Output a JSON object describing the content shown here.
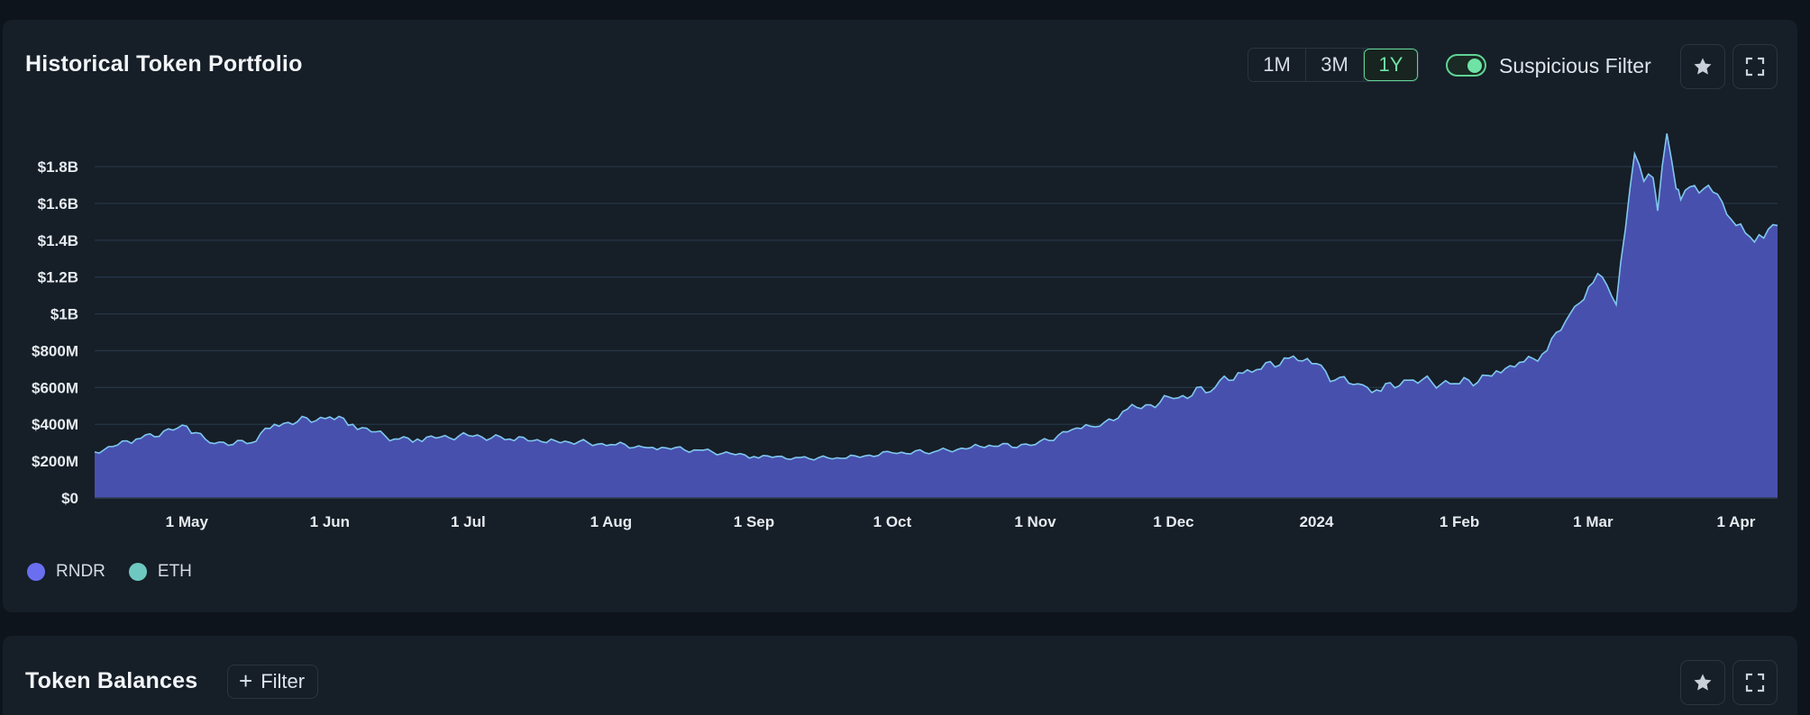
{
  "portfolio_card": {
    "title": "Historical Token Portfolio",
    "ranges": [
      "1M",
      "3M",
      "1Y"
    ],
    "active_range": "1Y",
    "suspicious_filter": {
      "label": "Suspicious Filter",
      "enabled": true
    },
    "star_icon": "star-icon",
    "expand_icon": "fullscreen-icon"
  },
  "balances_card": {
    "title": "Token Balances",
    "filter_label": "Filter",
    "filter_icon": "plus-icon",
    "star_icon": "star-icon",
    "expand_icon": "fullscreen-icon"
  },
  "colors": {
    "accent_green": "#5fd494",
    "area_fill": "#4b53b4",
    "line": "#7fc7ef",
    "rndr": "#6a6ff0",
    "eth": "#6ec8c2"
  },
  "chart_data": {
    "type": "area",
    "title": "",
    "xlabel": "",
    "ylabel": "",
    "ylim": [
      0,
      1800000000
    ],
    "y_ticks": [
      "$0",
      "$200M",
      "$400M",
      "$600M",
      "$800M",
      "$1B",
      "$1.2B",
      "$1.4B",
      "$1.6B",
      "$1.8B"
    ],
    "x_ticks": [
      "1 May",
      "1 Jun",
      "1 Jul",
      "1 Aug",
      "1 Sep",
      "1 Oct",
      "1 Nov",
      "1 Dec",
      "2024",
      "1 Feb",
      "1 Mar",
      "1 Apr"
    ],
    "x_range": [
      "2023-04-11",
      "2024-04-10"
    ],
    "legend": [
      "RNDR",
      "ETH"
    ],
    "legend_position": "bottom-left",
    "grid": true,
    "series": [
      {
        "name": "RNDR",
        "x": [
          "2023-04-11",
          "2023-04-20",
          "2023-05-01",
          "2023-05-06",
          "2023-05-15",
          "2023-05-20",
          "2023-06-01",
          "2023-06-06",
          "2023-06-15",
          "2023-06-20",
          "2023-07-01",
          "2023-07-10",
          "2023-07-20",
          "2023-08-01",
          "2023-08-10",
          "2023-08-20",
          "2023-09-01",
          "2023-09-10",
          "2023-09-20",
          "2023-10-01",
          "2023-10-10",
          "2023-10-20",
          "2023-11-01",
          "2023-11-10",
          "2023-11-15",
          "2023-11-20",
          "2023-12-01",
          "2023-12-10",
          "2023-12-15",
          "2023-12-20",
          "2023-12-25",
          "2024-01-01",
          "2024-01-05",
          "2024-01-10",
          "2024-01-15",
          "2024-01-20",
          "2024-02-01",
          "2024-02-10",
          "2024-02-15",
          "2024-02-20",
          "2024-02-25",
          "2024-03-01",
          "2024-03-03",
          "2024-03-06",
          "2024-03-08",
          "2024-03-10",
          "2024-03-12",
          "2024-03-14",
          "2024-03-15",
          "2024-03-17",
          "2024-03-19",
          "2024-03-20",
          "2024-03-22",
          "2024-03-25",
          "2024-03-28",
          "2024-04-01",
          "2024-04-03",
          "2024-04-05",
          "2024-04-08",
          "2024-04-10"
        ],
        "values": [
          250000000,
          320000000,
          390000000,
          300000000,
          300000000,
          400000000,
          440000000,
          400000000,
          320000000,
          320000000,
          340000000,
          320000000,
          310000000,
          290000000,
          275000000,
          260000000,
          225000000,
          220000000,
          215000000,
          245000000,
          250000000,
          280000000,
          290000000,
          380000000,
          390000000,
          470000000,
          540000000,
          600000000,
          680000000,
          700000000,
          760000000,
          730000000,
          640000000,
          620000000,
          580000000,
          640000000,
          620000000,
          680000000,
          740000000,
          800000000,
          1000000000,
          1170000000,
          1200000000,
          1050000000,
          1460000000,
          1870000000,
          1720000000,
          1740000000,
          1560000000,
          1980000000,
          1680000000,
          1620000000,
          1690000000,
          1680000000,
          1650000000,
          1480000000,
          1440000000,
          1390000000,
          1460000000,
          1480000000
        ]
      },
      {
        "name": "ETH",
        "values": [
          0,
          0,
          0,
          0,
          0,
          0,
          0,
          0,
          0,
          0,
          0,
          0,
          0,
          0,
          0,
          0,
          0,
          0,
          0,
          0,
          0,
          0,
          0,
          0,
          0,
          0,
          0,
          0,
          0,
          0,
          0,
          0,
          0,
          0,
          0,
          0,
          0,
          0,
          0,
          0,
          0,
          0,
          0,
          0,
          0,
          0,
          0,
          0,
          0,
          0,
          0,
          0,
          0,
          0,
          0,
          0,
          0,
          0,
          0,
          0
        ]
      }
    ]
  }
}
